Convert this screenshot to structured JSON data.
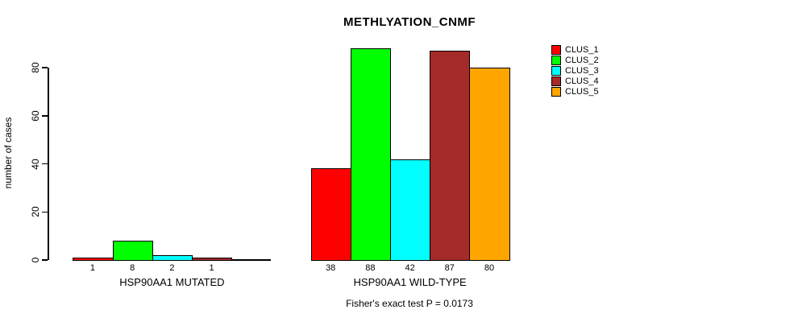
{
  "chart_data": {
    "type": "bar",
    "title": "METHLYATION_CNMF",
    "categories": [
      "HSP90AA1 MUTATED",
      "HSP90AA1 WILD-TYPE"
    ],
    "series": [
      {
        "name": "CLUS_1",
        "color": "#FF0000",
        "values": [
          1,
          38
        ]
      },
      {
        "name": "CLUS_2",
        "color": "#00FF00",
        "values": [
          8,
          88
        ]
      },
      {
        "name": "CLUS_3",
        "color": "#00FFFF",
        "values": [
          2,
          42
        ]
      },
      {
        "name": "CLUS_4",
        "color": "#A52A2A",
        "values": [
          1,
          87
        ]
      },
      {
        "name": "CLUS_5",
        "color": "#FFA500",
        "values": [
          0,
          80
        ]
      }
    ],
    "bar_labels": [
      [
        "1",
        "8",
        "2",
        "1",
        ""
      ],
      [
        "38",
        "88",
        "42",
        "87",
        "80"
      ]
    ],
    "xlabel": "",
    "ylabel": "number of cases",
    "y_ticks": [
      0,
      20,
      40,
      60,
      80
    ],
    "ylim": [
      0,
      88
    ],
    "grid": false,
    "legend_position": "right",
    "annotation": "Fisher's exact test P = 0.0173"
  }
}
